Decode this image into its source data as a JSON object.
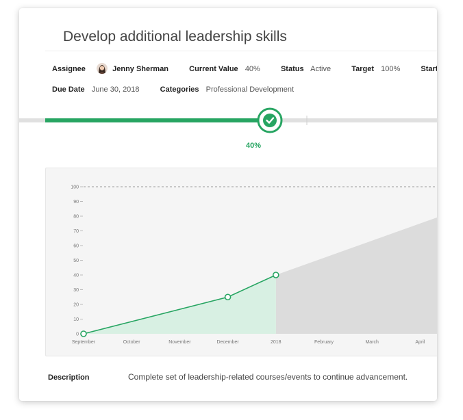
{
  "goal": {
    "title": "Develop additional leadership skills"
  },
  "meta": {
    "assignee_label": "Assignee",
    "assignee_name": "Jenny Sherman",
    "current_value_label": "Current Value",
    "current_value": "40%",
    "status_label": "Status",
    "status_value": "Active",
    "target_label": "Target",
    "target_value": "100%",
    "start_date_label": "Start Date",
    "due_date_label": "Due Date",
    "due_date_value": "June 30, 2018",
    "categories_label": "Categories",
    "categories_value": "Professional Development"
  },
  "progress": {
    "fraction": 0.4,
    "label": "40%",
    "icon": "checkmark-icon"
  },
  "colors": {
    "accent": "#27a562",
    "area_fill": "#d8f0e3",
    "projection_fill": "#dcdcdc"
  },
  "chart_data": {
    "type": "line",
    "x_categories": [
      "September",
      "October",
      "November",
      "December",
      "2018",
      "February",
      "March",
      "April"
    ],
    "y_ticks": [
      0,
      10,
      20,
      30,
      40,
      50,
      60,
      70,
      80,
      90,
      100
    ],
    "ylim": [
      0,
      100
    ],
    "target_line": 100,
    "grid": false,
    "series": [
      {
        "x": [
          "September",
          "December",
          "2018"
        ],
        "y": [
          0,
          25,
          40
        ]
      }
    ],
    "projection": {
      "from": {
        "x": "2018",
        "y": 40
      },
      "to": {
        "x": "April",
        "y": 75
      }
    }
  },
  "description": {
    "label": "Description",
    "text": "Complete set of leadership-related courses/events to continue advancement."
  }
}
